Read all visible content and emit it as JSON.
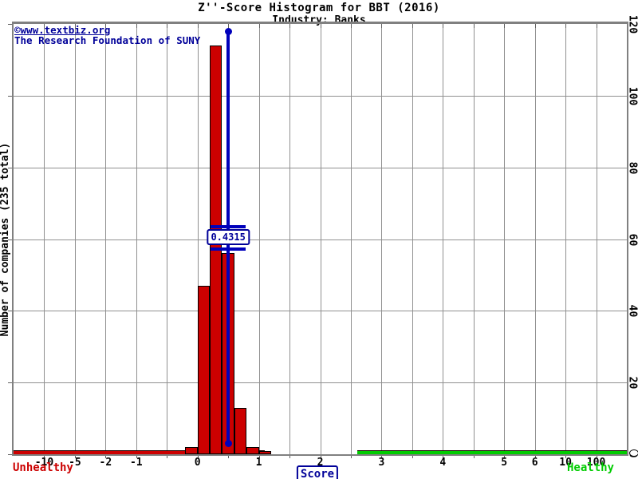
{
  "watermark": {
    "line1": "©www.textbiz.org",
    "line2": "The Research Foundation of SUNY"
  },
  "chart_data": {
    "type": "bar",
    "title": "Z''-Score Histogram for BBT (2016)",
    "subtitle": "Industry: Banks",
    "xlabel": "Score",
    "ylabel": "Number of companies (235 total)",
    "total_companies": 235,
    "ylim": [
      0,
      120
    ],
    "y_axis": {
      "ticks": [
        0,
        20,
        40,
        60,
        80,
        100,
        120
      ]
    },
    "x_axis": {
      "edges": [
        null,
        -10,
        -5,
        -2,
        -1,
        -0.5,
        0,
        0.5,
        1,
        1.5,
        2,
        2.5,
        3,
        3.5,
        4,
        4.5,
        5,
        6,
        10,
        100,
        null
      ],
      "tick_labels": [
        -10,
        -5,
        -2,
        -1,
        0,
        1,
        2,
        3,
        4,
        5,
        6,
        10,
        100
      ]
    },
    "bins": [
      {
        "range": [
          -0.2,
          0.0
        ],
        "count": 2
      },
      {
        "range": [
          0.0,
          0.2
        ],
        "count": 47
      },
      {
        "range": [
          0.2,
          0.4
        ],
        "count": 114
      },
      {
        "range": [
          0.4,
          0.6
        ],
        "count": 56
      },
      {
        "range": [
          0.6,
          0.8
        ],
        "count": 13
      },
      {
        "range": [
          0.8,
          1.0
        ],
        "count": 2
      },
      {
        "range": [
          1.0,
          1.2
        ],
        "count": 1
      }
    ],
    "marker": {
      "value": 0.4315,
      "label": "0.4315",
      "color": "#0000bb"
    },
    "zones": {
      "unhealthy": {
        "label": "Unhealthy",
        "to_score": 1.1,
        "color": "#cc0000"
      },
      "healthy": {
        "label": "Healthy",
        "from_score": 2.6,
        "color": "#00cc00"
      }
    },
    "colors": {
      "bar": "#cc0000",
      "grid": "#909090",
      "border": "#808080",
      "marker_blue": "#0000bb",
      "text_blue": "#000099",
      "unhealthy_text": "#cc0000",
      "healthy_text": "#00cc00"
    },
    "legend": "none",
    "grid": true
  }
}
